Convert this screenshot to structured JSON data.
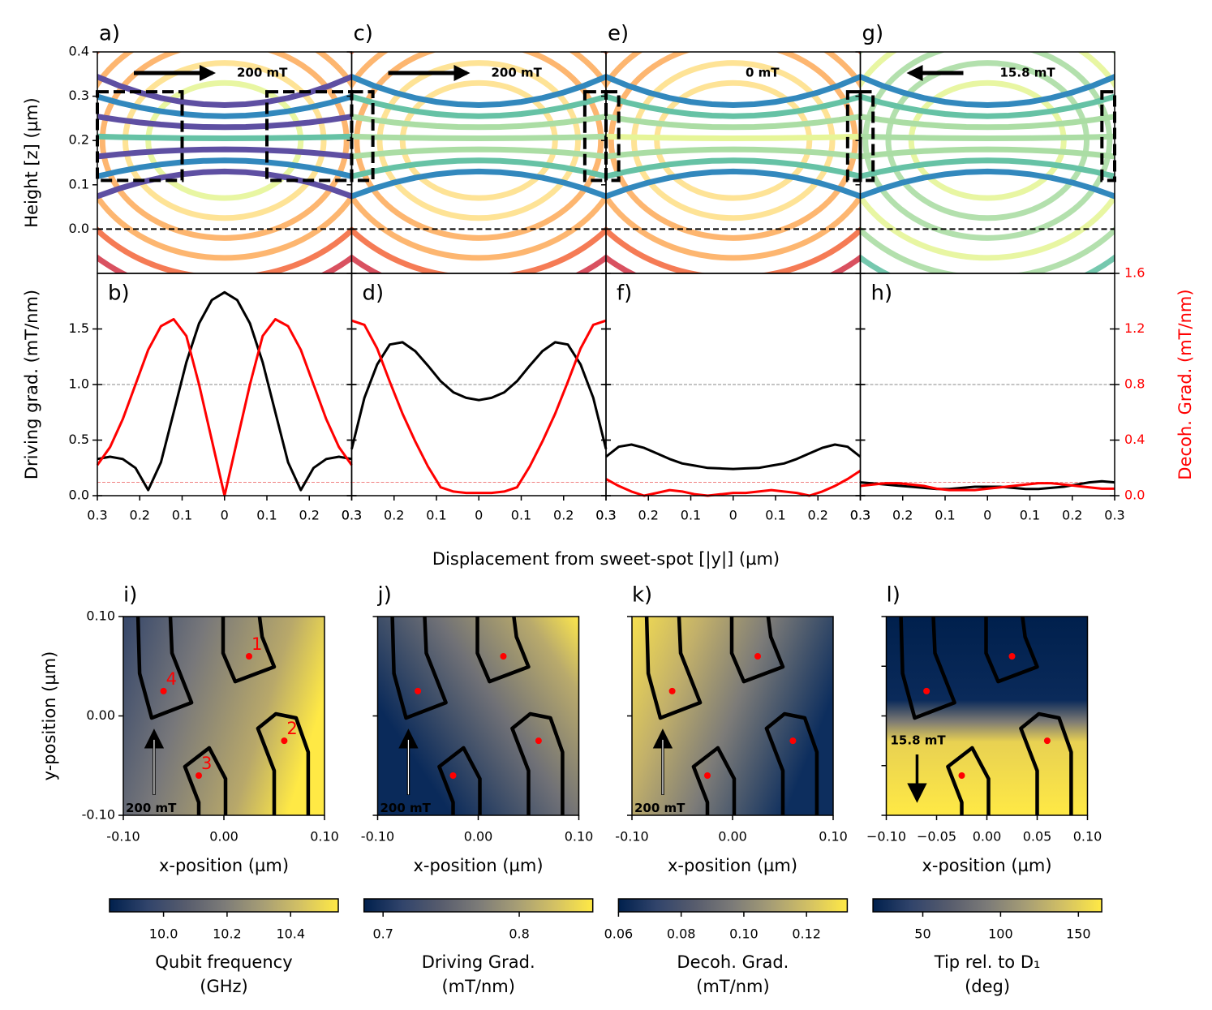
{
  "shared_xlabel": "Displacement from sweet-spot [|y|] (µm)",
  "chart_data": [
    {
      "type": "streamline",
      "panel": "a)",
      "ylabel": "Height [z] (µm)",
      "xlim": [
        -0.3,
        0.3
      ],
      "ylim": [
        -0.1,
        0.4
      ],
      "yticks": [
        {
          "value": 0,
          "label": "0.0"
        },
        {
          "value": 0.1,
          "label": "0.1"
        },
        {
          "value": 0.2,
          "label": "0.2"
        },
        {
          "value": 0.3,
          "label": "0.3"
        },
        {
          "value": 0.4,
          "label": "0.4"
        }
      ],
      "field": {
        "label": "200 mT",
        "direction": "right"
      },
      "hline": 0,
      "box_y": 0.1,
      "box_z": [
        0.11,
        0.31
      ],
      "cmap": "Spectral"
    },
    {
      "type": "streamline",
      "panel": "c)",
      "xlim": [
        -0.3,
        0.3
      ],
      "ylim": [
        -0.1,
        0.4
      ],
      "yticks": [
        {
          "value": 0,
          "label": "0.0"
        },
        {
          "value": 0.1,
          "label": "0.1"
        },
        {
          "value": 0.2,
          "label": "0.2"
        },
        {
          "value": 0.3,
          "label": "0.3"
        },
        {
          "value": 0.4,
          "label": "0.4"
        }
      ],
      "field": {
        "label": "200 mT",
        "direction": "right"
      },
      "hline": 0,
      "box_y": 0.25,
      "box_z": [
        0.11,
        0.31
      ],
      "cmap": "Spectral"
    },
    {
      "type": "streamline",
      "panel": "e)",
      "xlim": [
        -0.3,
        0.3
      ],
      "ylim": [
        -0.1,
        0.4
      ],
      "yticks": [
        {
          "value": 0,
          "label": "0.0"
        },
        {
          "value": 0.1,
          "label": "0.1"
        },
        {
          "value": 0.2,
          "label": "0.2"
        },
        {
          "value": 0.3,
          "label": "0.3"
        },
        {
          "value": 0.4,
          "label": "0.4"
        }
      ],
      "field": {
        "label": "0 mT"
      },
      "hline": 0,
      "box_y": 0.27,
      "box_z": [
        0.11,
        0.31
      ],
      "cmap": "Spectral"
    },
    {
      "type": "streamline",
      "panel": "g)",
      "xlim": [
        -0.3,
        0.3
      ],
      "ylim": [
        -0.1,
        0.4
      ],
      "yticks": [
        {
          "value": 0,
          "label": "0.0"
        },
        {
          "value": 0.1,
          "label": "0.1"
        },
        {
          "value": 0.2,
          "label": "0.2"
        },
        {
          "value": 0.3,
          "label": "0.3"
        },
        {
          "value": 0.4,
          "label": "0.4"
        }
      ],
      "field": {
        "label": "15.8 mT",
        "direction": "left"
      },
      "hline": 0,
      "box_y": 0.27,
      "box_z": [
        0.11,
        0.31
      ],
      "cmap": "Spectral"
    },
    {
      "type": "line",
      "panel": "b)",
      "ylabel": "Driving grad. (mT/nm)",
      "x": [
        -0.3,
        -0.27,
        -0.24,
        -0.21,
        -0.18,
        -0.15,
        -0.12,
        -0.09,
        -0.06,
        -0.03,
        0,
        0.03,
        0.06,
        0.09,
        0.12,
        0.15,
        0.18,
        0.21,
        0.24,
        0.27,
        0.3
      ],
      "xlim": [
        -0.3,
        0.3
      ],
      "xticks": [
        {
          "value": -0.3,
          "label": "0.3"
        },
        {
          "value": -0.2,
          "label": "0.2"
        },
        {
          "value": -0.1,
          "label": "0.1"
        },
        0,
        0.1,
        0.2,
        0.3
      ],
      "ylim": [
        0,
        2
      ],
      "yticks": [
        {
          "value": 0,
          "label": "0.0"
        },
        0.5,
        {
          "value": 1,
          "label": "1.0"
        },
        1.5
      ],
      "y2lim": [
        0,
        1.6
      ],
      "y2ticks": [
        {
          "value": 0,
          "label": "0.0"
        },
        0.4,
        0.8,
        1.2,
        1.6
      ],
      "reference_lines": [
        {
          "value": 1,
          "color": "#888888"
        },
        {
          "value": 0.12,
          "color": "#f08080"
        }
      ],
      "series": [
        {
          "color": "#000000",
          "values": [
            0.33,
            0.35,
            0.33,
            0.25,
            0.05,
            0.3,
            0.75,
            1.2,
            1.55,
            1.76,
            1.83,
            1.76,
            1.55,
            1.2,
            0.75,
            0.3,
            0.05,
            0.25,
            0.33,
            0.35,
            0.33
          ]
        },
        {
          "color": "#ff0000",
          "axis": "y2",
          "values": [
            0.22,
            0.35,
            0.55,
            0.8,
            1.05,
            1.22,
            1.27,
            1.15,
            0.8,
            0.4,
            0,
            0.4,
            0.8,
            1.15,
            1.27,
            1.22,
            1.05,
            0.8,
            0.55,
            0.35,
            0.22
          ]
        }
      ]
    },
    {
      "type": "line",
      "panel": "d)",
      "x": [
        -0.3,
        -0.27,
        -0.24,
        -0.21,
        -0.18,
        -0.15,
        -0.12,
        -0.09,
        -0.06,
        -0.03,
        0,
        0.03,
        0.06,
        0.09,
        0.12,
        0.15,
        0.18,
        0.21,
        0.24,
        0.27,
        0.3
      ],
      "xlim": [
        -0.3,
        0.3
      ],
      "xticks": [
        {
          "value": -0.3,
          "label": "0.3"
        },
        {
          "value": -0.2,
          "label": "0.2"
        },
        {
          "value": -0.1,
          "label": "0.1"
        },
        0,
        0.1,
        0.2,
        0.3
      ],
      "ylim": [
        0,
        2
      ],
      "yticks": [
        {
          "value": 0,
          "label": "0.0"
        },
        0.5,
        {
          "value": 1,
          "label": "1.0"
        },
        1.5
      ],
      "y2lim": [
        0,
        1.6
      ],
      "y2ticks": [
        {
          "value": 0,
          "label": "0.0"
        },
        0.4,
        0.8,
        1.2,
        1.6
      ],
      "reference_lines": [
        {
          "value": 1,
          "color": "#888888"
        },
        {
          "value": 0.12,
          "color": "#f08080"
        }
      ],
      "series": [
        {
          "color": "#000000",
          "values": [
            0.42,
            0.88,
            1.18,
            1.36,
            1.38,
            1.3,
            1.17,
            1.03,
            0.93,
            0.88,
            0.86,
            0.88,
            0.93,
            1.03,
            1.17,
            1.3,
            1.38,
            1.36,
            1.18,
            0.88,
            0.42
          ]
        },
        {
          "color": "#ff0000",
          "axis": "y2",
          "values": [
            1.26,
            1.23,
            1.06,
            0.82,
            0.59,
            0.39,
            0.21,
            0.06,
            0.03,
            0.02,
            0.02,
            0.02,
            0.03,
            0.06,
            0.21,
            0.39,
            0.59,
            0.82,
            1.06,
            1.23,
            1.26
          ]
        }
      ]
    },
    {
      "type": "line",
      "panel": "f)",
      "x": [
        -0.3,
        -0.27,
        -0.24,
        -0.21,
        -0.18,
        -0.15,
        -0.12,
        -0.09,
        -0.06,
        -0.03,
        0,
        0.03,
        0.06,
        0.09,
        0.12,
        0.15,
        0.18,
        0.21,
        0.24,
        0.27,
        0.3
      ],
      "xlim": [
        -0.3,
        0.3
      ],
      "xticks": [
        {
          "value": -0.3,
          "label": "0.3"
        },
        {
          "value": -0.2,
          "label": "0.2"
        },
        {
          "value": -0.1,
          "label": "0.1"
        },
        0,
        0.1,
        0.2,
        0.3
      ],
      "ylim": [
        0,
        2
      ],
      "yticks": [
        {
          "value": 0,
          "label": "0.0"
        },
        0.5,
        {
          "value": 1,
          "label": "1.0"
        },
        1.5
      ],
      "y2lim": [
        0,
        1.6
      ],
      "y2ticks": [
        {
          "value": 0,
          "label": "0.0"
        },
        0.4,
        0.8,
        1.2,
        1.6
      ],
      "reference_lines": [
        {
          "value": 1,
          "color": "#888888"
        },
        {
          "value": 0.12,
          "color": "#f08080"
        }
      ],
      "series": [
        {
          "color": "#000000",
          "values": [
            0.35,
            0.44,
            0.46,
            0.43,
            0.38,
            0.33,
            0.29,
            0.27,
            0.25,
            0.245,
            0.24,
            0.245,
            0.25,
            0.27,
            0.29,
            0.33,
            0.38,
            0.43,
            0.46,
            0.44,
            0.35
          ]
        },
        {
          "color": "#ff0000",
          "axis": "y2",
          "values": [
            0.12,
            0.07,
            0.03,
            0,
            0.02,
            0.04,
            0.03,
            0.01,
            0,
            0.01,
            0.02,
            0.02,
            0.03,
            0.04,
            0.03,
            0.02,
            0,
            0.03,
            0.07,
            0.12,
            0.18
          ]
        }
      ]
    },
    {
      "type": "line",
      "panel": "h)",
      "y2label": "Decoh. Grad. (mT/nm)",
      "x": [
        -0.3,
        -0.27,
        -0.24,
        -0.21,
        -0.18,
        -0.15,
        -0.12,
        -0.09,
        -0.06,
        -0.03,
        0,
        0.03,
        0.06,
        0.09,
        0.12,
        0.15,
        0.18,
        0.21,
        0.24,
        0.27,
        0.3
      ],
      "xlim": [
        -0.3,
        0.3
      ],
      "xticks": [
        {
          "value": -0.3,
          "label": "0.3"
        },
        {
          "value": -0.2,
          "label": "0.2"
        },
        {
          "value": -0.1,
          "label": "0.1"
        },
        0,
        0.1,
        0.2,
        0.3
      ],
      "ylim": [
        0,
        2
      ],
      "yticks": [
        {
          "value": 0,
          "label": "0.0"
        },
        0.5,
        {
          "value": 1,
          "label": "1.0"
        },
        1.5
      ],
      "y2lim": [
        0,
        1.6
      ],
      "y2ticks": [
        {
          "value": 0,
          "label": "0.0"
        },
        0.4,
        0.8,
        1.2,
        1.6
      ],
      "reference_lines": [
        {
          "value": 1,
          "color": "#888888"
        },
        {
          "value": 0.12,
          "color": "#f08080"
        }
      ],
      "series": [
        {
          "color": "#000000",
          "values": [
            0.12,
            0.11,
            0.1,
            0.09,
            0.08,
            0.07,
            0.06,
            0.06,
            0.07,
            0.08,
            0.08,
            0.08,
            0.07,
            0.06,
            0.06,
            0.07,
            0.08,
            0.1,
            0.12,
            0.13,
            0.12
          ]
        },
        {
          "color": "#ff0000",
          "axis": "y2",
          "values": [
            0.07,
            0.08,
            0.09,
            0.09,
            0.08,
            0.07,
            0.05,
            0.04,
            0.04,
            0.04,
            0.05,
            0.06,
            0.07,
            0.08,
            0.09,
            0.09,
            0.08,
            0.07,
            0.06,
            0.05,
            0.05
          ]
        }
      ]
    },
    {
      "type": "heatmap",
      "panel": "i)",
      "xlabel": "x-position (µm)",
      "ylabel": "y-position (µm)",
      "cmap": "cividis",
      "xlim": [
        -0.1,
        0.1
      ],
      "xticks": [
        {
          "value": -0.1,
          "label": "-0.10"
        },
        {
          "value": 0,
          "label": "0.00"
        },
        {
          "value": 0.1,
          "label": "0.10"
        }
      ],
      "ylim": [
        -0.1,
        0.1
      ],
      "yticks": [
        {
          "value": -0.1,
          "label": "-0.10"
        },
        {
          "value": 0,
          "label": "0.00"
        },
        {
          "value": 0.1,
          "label": "0.10"
        }
      ],
      "field": {
        "label": "200 mT",
        "direction": "up"
      },
      "points": {
        "x": [
          0.025,
          0.06,
          -0.025,
          -0.06
        ],
        "y": [
          0.06,
          -0.025,
          -0.06,
          0.025
        ],
        "labels": [
          "1",
          "2",
          "3",
          "4"
        ]
      },
      "colorbar": {
        "lim": [
          9.83,
          10.55
        ],
        "ticks": [
          {
            "value": 10,
            "label": "10.0"
          },
          10.2,
          10.4
        ],
        "label": [
          "Qubit frequency",
          "(GHz)"
        ]
      }
    },
    {
      "type": "heatmap",
      "panel": "j)",
      "xlabel": "x-position (µm)",
      "cmap": "cividis",
      "xlim": [
        -0.1,
        0.1
      ],
      "xticks": [
        {
          "value": -0.1,
          "label": "-0.10"
        },
        {
          "value": 0,
          "label": "0.00"
        },
        {
          "value": 0.1,
          "label": "0.10"
        }
      ],
      "ylim": [
        -0.1,
        0.1
      ],
      "yticks": [
        -0.1,
        0,
        0.1
      ],
      "field": {
        "label": "200 mT",
        "direction": "up"
      },
      "points": {
        "x": [
          0.025,
          0.06,
          -0.025,
          -0.06
        ],
        "y": [
          0.06,
          -0.025,
          -0.06,
          0.025
        ]
      },
      "colorbar": {
        "lim": [
          0.686,
          0.854
        ],
        "ticks": [
          0.7,
          0.8
        ],
        "label": [
          "Driving Grad.",
          "(mT/nm)"
        ]
      }
    },
    {
      "type": "heatmap",
      "panel": "k)",
      "xlabel": "x-position (µm)",
      "cmap": "cividis",
      "xlim": [
        -0.1,
        0.1
      ],
      "xticks": [
        {
          "value": -0.1,
          "label": "-0.10"
        },
        {
          "value": 0,
          "label": "0.00"
        },
        {
          "value": 0.1,
          "label": "0.10"
        }
      ],
      "ylim": [
        -0.1,
        0.1
      ],
      "yticks": [
        -0.1,
        0,
        0.1
      ],
      "field": {
        "label": "200 mT",
        "direction": "up"
      },
      "points": {
        "x": [
          0.025,
          0.06,
          -0.025,
          -0.06
        ],
        "y": [
          0.06,
          -0.025,
          -0.06,
          0.025
        ]
      },
      "colorbar": {
        "lim": [
          0.06,
          0.133
        ],
        "ticks": [
          0.06,
          0.08,
          {
            "value": 0.1,
            "label": "0.10"
          },
          0.12
        ],
        "label": [
          "Decoh. Grad.",
          "(mT/nm)"
        ]
      }
    },
    {
      "type": "heatmap",
      "panel": "l)",
      "xlabel": "x-position (µm)",
      "cmap": "cividis",
      "xlim": [
        -0.1,
        0.1
      ],
      "xticks": [
        {
          "value": -0.1,
          "label": "−0.10"
        },
        {
          "value": -0.05,
          "label": "−0.05"
        },
        {
          "value": 0,
          "label": "0.00"
        },
        0.05,
        {
          "value": 0.1,
          "label": "0.10"
        }
      ],
      "ylim": [
        -0.1,
        0.1
      ],
      "yticks": [
        -0.1,
        -0.05,
        0,
        0.05,
        0.1
      ],
      "field": {
        "label": "15.8 mT",
        "direction": "down"
      },
      "points": {
        "x": [
          0.025,
          0.06,
          -0.025,
          -0.06
        ],
        "y": [
          0.06,
          -0.025,
          -0.06,
          0.025
        ]
      },
      "colorbar": {
        "lim": [
          18,
          165
        ],
        "ticks": [
          50,
          100,
          150
        ],
        "label": [
          "Tip rel. to D₁",
          "(deg)"
        ]
      }
    }
  ]
}
